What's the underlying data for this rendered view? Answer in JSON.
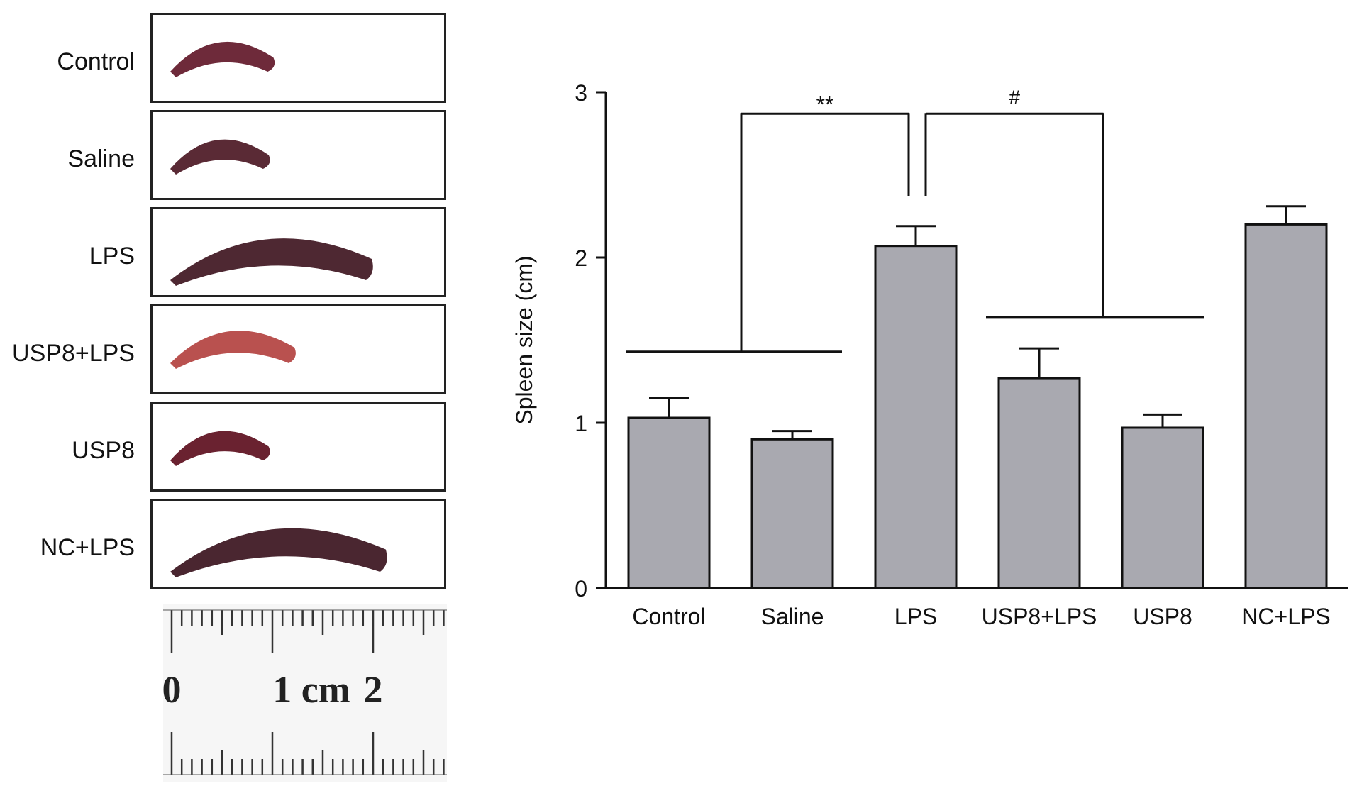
{
  "photos": {
    "rows": [
      {
        "label": "Control",
        "spleen_color": "#6e2a3a",
        "relative_length": 0.38
      },
      {
        "label": "Saline",
        "spleen_color": "#5a2a35",
        "relative_length": 0.36
      },
      {
        "label": "LPS",
        "spleen_color": "#4e2832",
        "relative_length": 0.8
      },
      {
        "label": "USP8+LPS",
        "spleen_color": "#b9514f",
        "relative_length": 0.47
      },
      {
        "label": "USP8",
        "spleen_color": "#6a2230",
        "relative_length": 0.36
      },
      {
        "label": "NC+LPS",
        "spleen_color": "#4a2630",
        "relative_length": 0.86
      }
    ],
    "ruler": {
      "labels": [
        "0",
        "1 cm",
        "2"
      ]
    }
  },
  "chart_data": {
    "type": "bar",
    "categories": [
      "Control",
      "Saline",
      "LPS",
      "USP8+LPS",
      "USP8",
      "NC+LPS"
    ],
    "values": [
      1.03,
      0.9,
      2.07,
      1.27,
      0.97,
      2.2
    ],
    "errors": [
      0.12,
      0.05,
      0.12,
      0.18,
      0.08,
      0.11
    ],
    "ylabel": "Spleen size (cm)",
    "xlabel": "",
    "ylim": [
      0,
      3
    ],
    "yticks": [
      0,
      1,
      2,
      3
    ],
    "bar_color": "#a9a9b0",
    "grid": false,
    "annotations": [
      {
        "text": "**",
        "from_groups": [
          "Control",
          "Saline"
        ],
        "to_group": "LPS"
      },
      {
        "text": "#",
        "from_group": "LPS",
        "to_groups": [
          "USP8+LPS",
          "USP8"
        ]
      }
    ]
  }
}
